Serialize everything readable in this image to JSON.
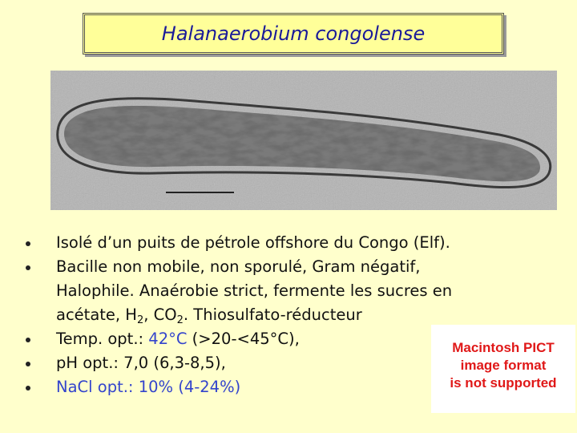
{
  "title": "Halanaerobium congolense",
  "bullets": [
    {
      "lines": [
        [
          {
            "text": "Isolé d’un puits de pétrole offshore du Congo (Elf)."
          }
        ]
      ]
    },
    {
      "lines": [
        [
          {
            "text": "Bacille non mobile, non sporulé, Gram négatif,"
          }
        ],
        [
          {
            "text": "Halophile. Anaérobie strict, fermente les sucres en"
          }
        ],
        [
          {
            "text": "acétate, H"
          },
          {
            "text": "2",
            "sub": true
          },
          {
            "text": ", CO"
          },
          {
            "text": "2",
            "sub": true
          },
          {
            "text": ". Thiosulfato-réducteur"
          }
        ]
      ]
    },
    {
      "lines": [
        [
          {
            "text": "Temp. opt.: "
          },
          {
            "text": "42°C",
            "color": "#3344cc"
          },
          {
            "text": " (>20-<45°C),"
          }
        ]
      ]
    },
    {
      "lines": [
        [
          {
            "text": "pH opt.: 7,0 (6,3-8,5),"
          }
        ]
      ]
    },
    {
      "lines": [
        [
          {
            "text": "NaCl opt.: 10% (4-24%)",
            "color": "#3344cc"
          }
        ]
      ]
    }
  ],
  "placeholder": {
    "lines": [
      "Macintosh PICT",
      "image format",
      "is not supported"
    ]
  }
}
